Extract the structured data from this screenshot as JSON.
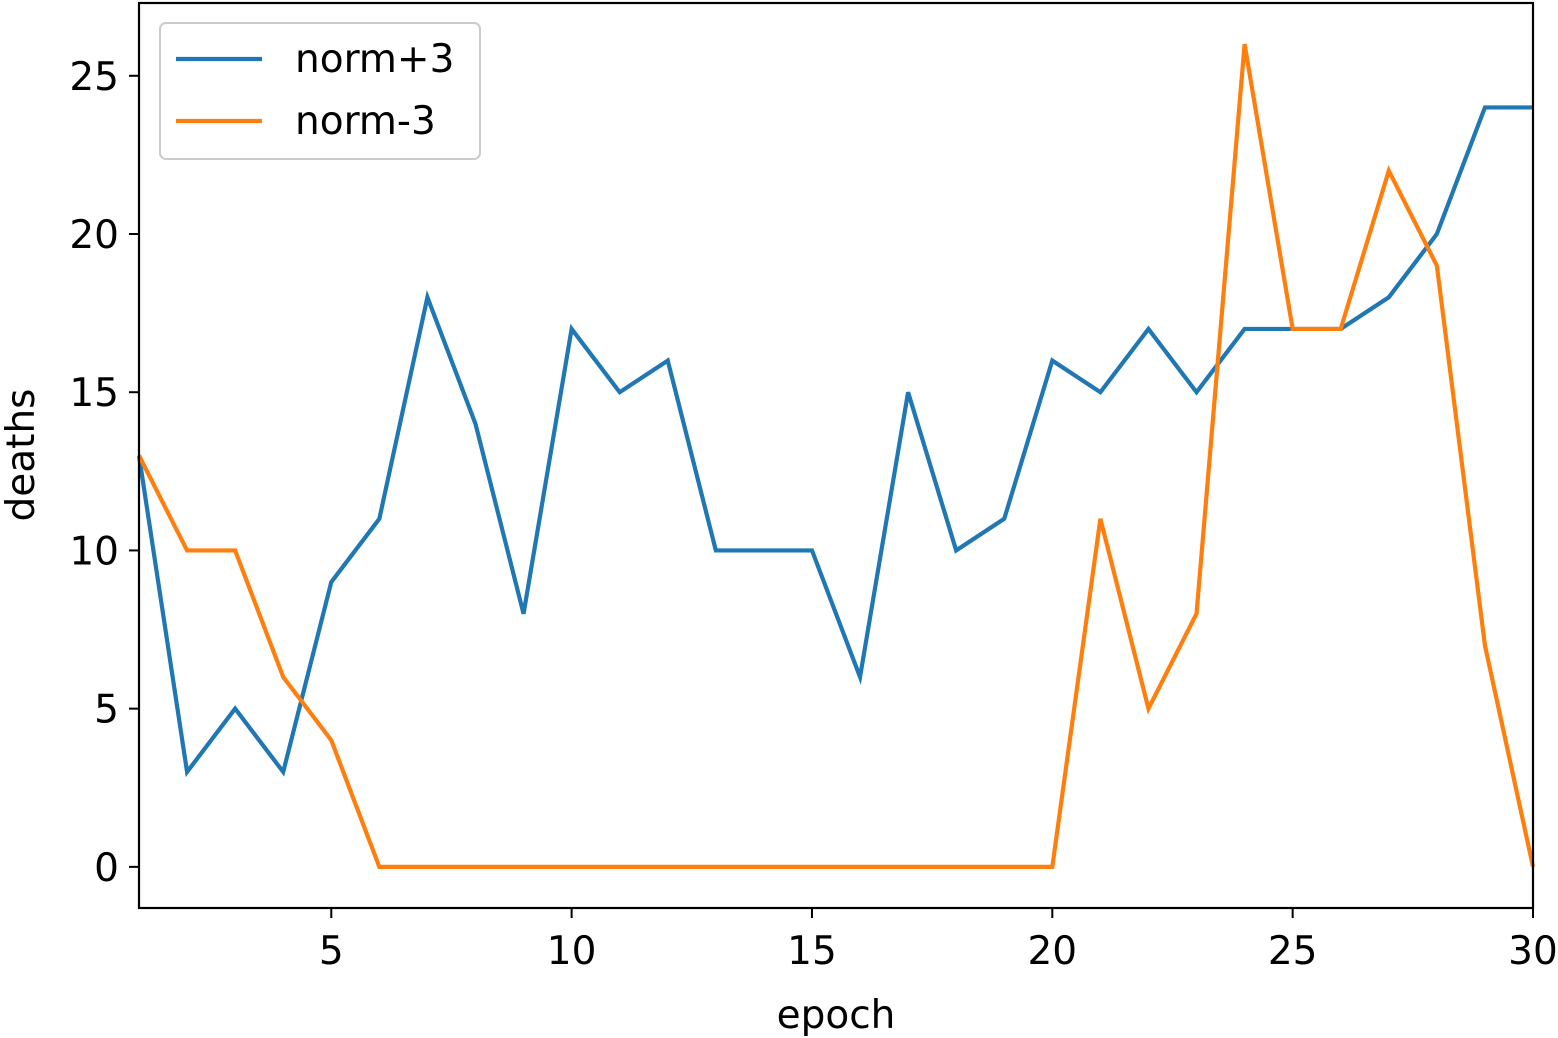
{
  "chart_data": {
    "type": "line",
    "title": "",
    "xlabel": "epoch",
    "ylabel": "deaths",
    "xlim": [
      1,
      30
    ],
    "ylim": [
      -1.3,
      27.3
    ],
    "xticks": [
      5,
      10,
      15,
      20,
      25,
      30
    ],
    "yticks": [
      0,
      5,
      10,
      15,
      20,
      25
    ],
    "grid": false,
    "legend_position": "top-left",
    "x": [
      1,
      2,
      3,
      4,
      5,
      6,
      7,
      8,
      9,
      10,
      11,
      12,
      13,
      14,
      15,
      16,
      17,
      18,
      19,
      20,
      21,
      22,
      23,
      24,
      25,
      26,
      27,
      28,
      29,
      30
    ],
    "series": [
      {
        "name": "norm+3",
        "color": "#1f77b4",
        "values": [
          13,
          3,
          5,
          3,
          9,
          11,
          18,
          14,
          8,
          17,
          15,
          16,
          10,
          10,
          10,
          6,
          15,
          10,
          11,
          16,
          15,
          17,
          15,
          17,
          17,
          17,
          18,
          20,
          24,
          24
        ]
      },
      {
        "name": "norm-3",
        "color": "#ff7f0e",
        "values": [
          13,
          10,
          10,
          6,
          4,
          0,
          0,
          0,
          0,
          0,
          0,
          0,
          0,
          0,
          0,
          0,
          0,
          0,
          0,
          0,
          11,
          5,
          8,
          26,
          17,
          17,
          22,
          19,
          7,
          0
        ]
      }
    ]
  }
}
